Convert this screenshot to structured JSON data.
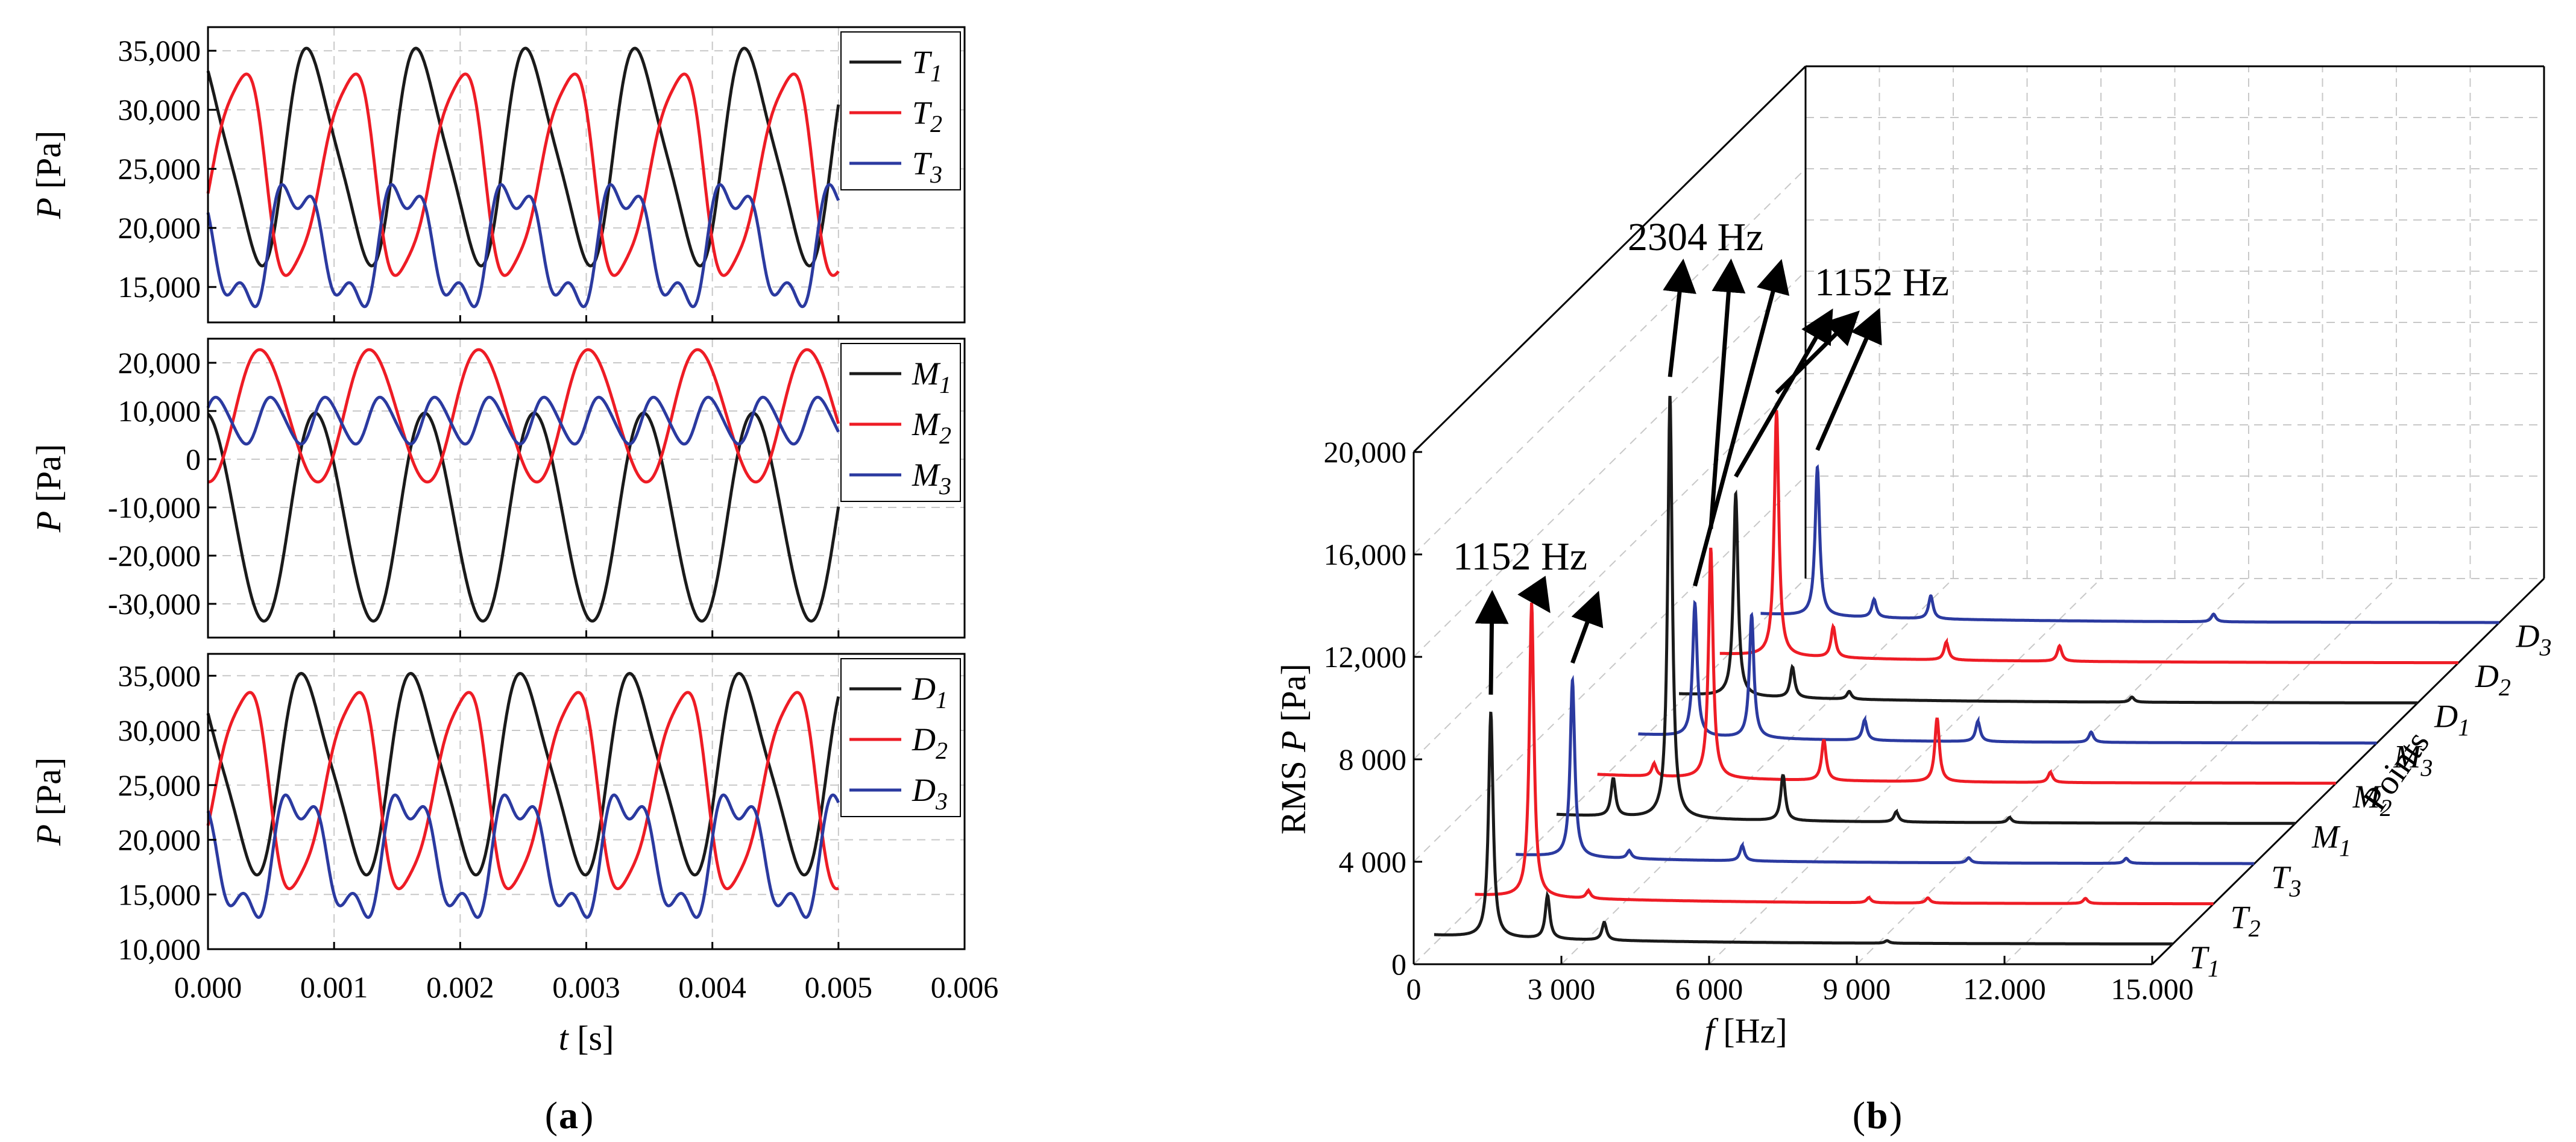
{
  "chart_data": [
    {
      "type": "line",
      "panel": "(a)",
      "xlabel": "t [s]",
      "xlim": [
        0.0,
        0.006
      ],
      "xticks": [
        "0.000",
        "0.001",
        "0.002",
        "0.003",
        "0.004",
        "0.005",
        "0.006"
      ],
      "subplots": [
        {
          "ylabel": "P [Pa]",
          "ylim": [
            12000,
            37000
          ],
          "yticks": [
            15000,
            20000,
            25000,
            30000,
            35000
          ],
          "ytick_labels": [
            "15,000",
            "20,000",
            "25,000",
            "30,000",
            "35,000"
          ],
          "legend_position": "top-right",
          "series": [
            {
              "name": "T",
              "sub": "1",
              "color": "#1a1a1a",
              "mean": 26000,
              "amp": 9500,
              "freq": 1152,
              "phase": 1.9,
              "h2": 0.18,
              "h3": 0
            },
            {
              "name": "T",
              "sub": "2",
              "color": "#ee1c25",
              "mean": 24500,
              "amp": 9500,
              "freq": 1152,
              "phase": -0.2,
              "h2": -0.15,
              "h3": 0.08
            },
            {
              "name": "T",
              "sub": "3",
              "color": "#2b3aa0",
              "mean": 18500,
              "amp": 6000,
              "freq": 1152,
              "phase": 2.8,
              "h2": 0.1,
              "h3": 0.35
            }
          ]
        },
        {
          "ylabel": "P [Pa]",
          "ylim": [
            -37000,
            25000
          ],
          "yticks": [
            -30000,
            -20000,
            -10000,
            0,
            10000,
            20000
          ],
          "ytick_labels": [
            "-30,000",
            "-20,000",
            "-10,000",
            "0",
            "10,000",
            "20,000"
          ],
          "legend_position": "top-right",
          "series": [
            {
              "name": "M",
              "sub": "1",
              "color": "#1a1a1a",
              "mean": -12000,
              "amp": 22000,
              "freq": 1152,
              "phase": 1.6,
              "h2": 0.05,
              "h3": 0
            },
            {
              "name": "M",
              "sub": "2",
              "color": "#ee1c25",
              "mean": 9000,
              "amp": 14000,
              "freq": 1152,
              "phase": -1.5,
              "h2": 0.05,
              "h3": 0
            },
            {
              "name": "M",
              "sub": "3",
              "color": "#2b3aa0",
              "mean": 8000,
              "amp": 5000,
              "freq": 2304,
              "phase": 0.5,
              "h2": 0.1,
              "h3": 0
            }
          ]
        },
        {
          "ylabel": "P [Pa]",
          "ylim": [
            10000,
            37000
          ],
          "yticks": [
            10000,
            15000,
            20000,
            25000,
            30000,
            35000
          ],
          "ytick_labels": [
            "10,000",
            "15,000",
            "20,000",
            "25,000",
            "30,000",
            "35,000"
          ],
          "legend_position": "top-right",
          "series": [
            {
              "name": "D",
              "sub": "1",
              "color": "#1a1a1a",
              "mean": 26000,
              "amp": 9500,
              "freq": 1152,
              "phase": 2.2,
              "h2": 0.18,
              "h3": 0
            },
            {
              "name": "D",
              "sub": "2",
              "color": "#ee1c25",
              "mean": 24500,
              "amp": 10000,
              "freq": 1152,
              "phase": -0.4,
              "h2": -0.15,
              "h3": 0.08
            },
            {
              "name": "D",
              "sub": "3",
              "color": "#2b3aa0",
              "mean": 18500,
              "amp": 6500,
              "freq": 1152,
              "phase": 2.6,
              "h2": 0.1,
              "h3": 0.35
            }
          ]
        }
      ]
    },
    {
      "type": "line",
      "panel": "(b)",
      "projection": "3d-waterfall",
      "xlabel": "f [Hz]",
      "ylabel": "RMS P [Pa]",
      "zlabel": "Points",
      "xlim": [
        0,
        15000
      ],
      "xticks": [
        0,
        3000,
        6000,
        9000,
        12000,
        15000
      ],
      "xtick_labels": [
        "0",
        "3 000",
        "6 000",
        "9 000",
        "12.000",
        "15.000"
      ],
      "ylim": [
        0,
        20000
      ],
      "yticks": [
        0,
        4000,
        8000,
        12000,
        16000,
        20000
      ],
      "ytick_labels": [
        "0",
        "4 000",
        "8 000",
        "12,000",
        "16,000",
        "20,000"
      ],
      "points": [
        {
          "name": "T",
          "sub": "1",
          "color": "#1a1a1a",
          "peaks": [
            [
              1152,
              8800
            ],
            [
              2304,
              1700
            ],
            [
              3456,
              700
            ],
            [
              9200,
              100
            ]
          ]
        },
        {
          "name": "T",
          "sub": "2",
          "color": "#ee1c25",
          "peaks": [
            [
              1152,
              11500
            ],
            [
              2304,
              300
            ],
            [
              8000,
              200
            ],
            [
              9200,
              200
            ],
            [
              12400,
              200
            ]
          ]
        },
        {
          "name": "T",
          "sub": "3",
          "color": "#2b3aa0",
          "peaks": [
            [
              1152,
              6900
            ],
            [
              2304,
              300
            ],
            [
              4600,
              600
            ],
            [
              9200,
              200
            ],
            [
              12400,
              200
            ]
          ]
        },
        {
          "name": "M",
          "sub": "1",
          "color": "#1a1a1a",
          "peaks": [
            [
              1152,
              1500
            ],
            [
              2304,
              16500
            ],
            [
              4600,
              1800
            ],
            [
              6900,
              400
            ],
            [
              9200,
              200
            ]
          ]
        },
        {
          "name": "M",
          "sub": "2",
          "color": "#ee1c25",
          "peaks": [
            [
              1152,
              500
            ],
            [
              2304,
              9000
            ],
            [
              4600,
              1600
            ],
            [
              6900,
              2500
            ],
            [
              9200,
              400
            ]
          ]
        },
        {
          "name": "M",
          "sub": "3",
          "color": "#2b3aa0",
          "peaks": [
            [
              1152,
              5200
            ],
            [
              2304,
              4800
            ],
            [
              4600,
              800
            ],
            [
              6900,
              800
            ],
            [
              9200,
              400
            ]
          ]
        },
        {
          "name": "D",
          "sub": "1",
          "color": "#1a1a1a",
          "peaks": [
            [
              1152,
              7900
            ],
            [
              2304,
              1200
            ],
            [
              3456,
              300
            ],
            [
              9200,
              200
            ]
          ]
        },
        {
          "name": "D",
          "sub": "2",
          "color": "#ee1c25",
          "peaks": [
            [
              1152,
              9600
            ],
            [
              2304,
              1200
            ],
            [
              4600,
              700
            ],
            [
              6900,
              600
            ]
          ]
        },
        {
          "name": "D",
          "sub": "3",
          "color": "#2b3aa0",
          "peaks": [
            [
              1152,
              5800
            ],
            [
              2304,
              700
            ],
            [
              3456,
              900
            ],
            [
              9200,
              300
            ]
          ]
        }
      ],
      "annotations": [
        {
          "text": "1152 Hz",
          "arrows_to": [
            "T1",
            "T2",
            "T3"
          ]
        },
        {
          "text": "2304 Hz",
          "arrows_to": [
            "M1",
            "M2",
            "M3"
          ]
        },
        {
          "text": "1152 Hz",
          "arrows_to": [
            "D1",
            "D2",
            "D3"
          ]
        }
      ]
    }
  ],
  "captions": {
    "a": "a",
    "b": "b"
  }
}
